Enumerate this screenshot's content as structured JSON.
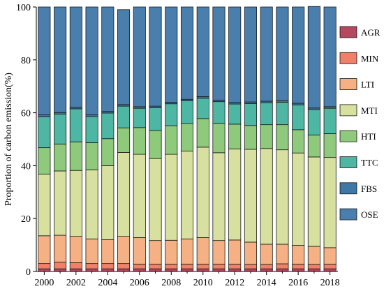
{
  "chart_data": {
    "type": "bar",
    "stacked": true,
    "title": "",
    "xlabel": "",
    "ylabel": "Proportion of carbon emission(%)",
    "ylim": [
      0,
      100
    ],
    "yticks": [
      0,
      20,
      40,
      60,
      80,
      100
    ],
    "xtick_labels": [
      "2000",
      "2002",
      "2004",
      "2006",
      "2008",
      "2010",
      "2012",
      "2014",
      "2016",
      "2018"
    ],
    "categories": [
      "2000",
      "2001",
      "2002",
      "2003",
      "2004",
      "2005",
      "2006",
      "2007",
      "2008",
      "2009",
      "2010",
      "2011",
      "2012",
      "2013",
      "2014",
      "2015",
      "2016",
      "2017",
      "2018"
    ],
    "legend_position": "right",
    "series": [
      {
        "name": "AGR",
        "color": "#b5485e",
        "values": [
          1.0,
          1.0,
          1.0,
          1.0,
          1.0,
          1.0,
          1.0,
          1.0,
          1.0,
          1.0,
          1.0,
          1.0,
          1.0,
          1.0,
          1.0,
          1.0,
          1.0,
          1.0,
          1.0
        ]
      },
      {
        "name": "MIN",
        "color": "#f08068",
        "values": [
          2.0,
          2.5,
          2.3,
          2.0,
          2.0,
          2.0,
          1.8,
          1.8,
          1.8,
          1.8,
          1.8,
          1.8,
          1.8,
          1.7,
          1.7,
          1.9,
          1.8,
          1.7,
          1.8
        ]
      },
      {
        "name": "LTI",
        "color": "#f5b183",
        "values": [
          10.5,
          10.2,
          10.0,
          9.3,
          9.0,
          10.3,
          10.0,
          8.9,
          9.0,
          9.5,
          10.0,
          8.9,
          9.1,
          8.4,
          7.6,
          7.4,
          7.1,
          6.8,
          6.2
        ]
      },
      {
        "name": "MTI",
        "color": "#d7e09f",
        "values": [
          23.3,
          24.3,
          24.9,
          26.1,
          28.0,
          31.7,
          31.5,
          31.0,
          32.5,
          33.2,
          34.2,
          33.2,
          34.4,
          35.1,
          36.2,
          35.7,
          34.9,
          33.8,
          34.1
        ]
      },
      {
        "name": "HTI",
        "color": "#8ec97c",
        "values": [
          10.0,
          10.2,
          10.8,
          10.3,
          10.2,
          9.3,
          10.1,
          10.6,
          10.8,
          10.4,
          10.8,
          11.1,
          9.4,
          9.0,
          9.0,
          9.5,
          8.8,
          8.3,
          9.0
        ]
      },
      {
        "name": "TTC",
        "color": "#4db7a4",
        "values": [
          11.7,
          11.3,
          12.5,
          9.9,
          9.7,
          8.2,
          7.3,
          8.6,
          8.3,
          8.6,
          7.7,
          8.2,
          7.6,
          8.3,
          8.3,
          8.5,
          9.4,
          9.6,
          9.6
        ]
      },
      {
        "name": "FBS",
        "color": "#3d78a8",
        "values": [
          0.7,
          0.6,
          0.6,
          0.6,
          0.6,
          0.6,
          0.6,
          0.6,
          0.6,
          0.6,
          0.6,
          0.6,
          0.6,
          0.6,
          0.6,
          0.6,
          0.6,
          0.6,
          0.6
        ]
      },
      {
        "name": "OSE",
        "color": "#4a7fad",
        "values": [
          40.8,
          39.9,
          37.9,
          40.8,
          39.5,
          35.9,
          37.7,
          37.5,
          36.0,
          34.9,
          33.9,
          35.2,
          36.1,
          35.9,
          35.6,
          35.4,
          36.4,
          38.4,
          37.7
        ]
      }
    ]
  }
}
